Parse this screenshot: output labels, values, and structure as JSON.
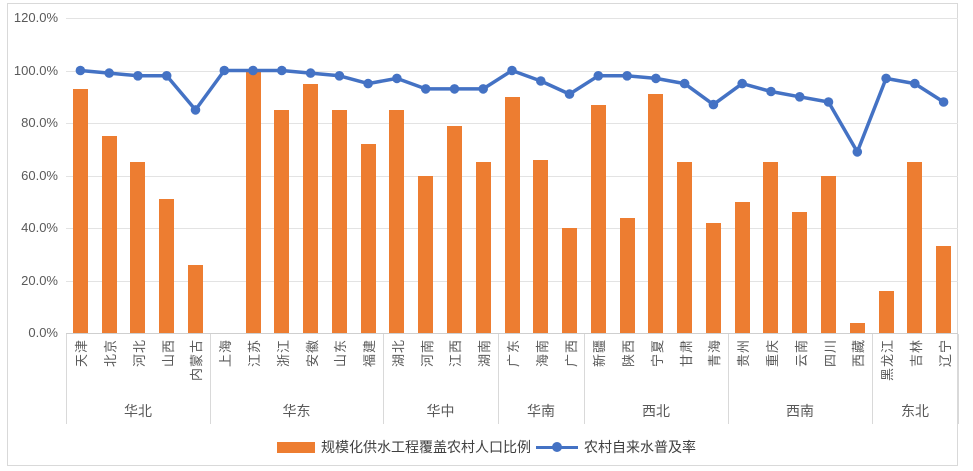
{
  "chart_data": {
    "type": "bar",
    "subtype": "combo-bar-line",
    "title": "",
    "y_axis": {
      "min": 0,
      "max": 120,
      "step": 20,
      "unit": "%",
      "tick_labels": [
        "120.0%",
        "100.0%",
        "80.0%",
        "60.0%",
        "40.0%",
        "20.0%",
        "0.0%"
      ],
      "grid": true
    },
    "categories": [
      "天津",
      "北京",
      "河北",
      "山西",
      "内蒙古",
      "上海",
      "江苏",
      "浙江",
      "安徽",
      "山东",
      "福建",
      "湖北",
      "河南",
      "江西",
      "湖南",
      "广东",
      "海南",
      "广西",
      "新疆",
      "陕西",
      "宁夏",
      "甘肃",
      "青海",
      "贵州",
      "重庆",
      "云南",
      "四川",
      "西藏",
      "黑龙江",
      "吉林",
      "辽宁"
    ],
    "regions": [
      {
        "name": "华北",
        "count": 5
      },
      {
        "name": "华东",
        "count": 6
      },
      {
        "name": "华中",
        "count": 4
      },
      {
        "name": "华南",
        "count": 3
      },
      {
        "name": "西北",
        "count": 5
      },
      {
        "name": "西南",
        "count": 5
      },
      {
        "name": "东北",
        "count": 3
      }
    ],
    "series": [
      {
        "name": "规模化供水工程覆盖农村人口比例",
        "type": "bar",
        "color": "#ED7D31",
        "values": [
          93,
          75,
          65,
          51,
          26,
          null,
          100,
          85,
          95,
          85,
          72,
          85,
          60,
          79,
          65,
          90,
          66,
          40,
          87,
          44,
          91,
          65,
          42,
          50,
          65,
          46,
          60,
          4,
          16,
          65,
          33
        ]
      },
      {
        "name": "农村自来水普及率",
        "type": "line",
        "color": "#4472C4",
        "marker_color": "#4472C4",
        "values": [
          100,
          99,
          98,
          98,
          85,
          100,
          100,
          100,
          99,
          98,
          95,
          97,
          93,
          93,
          93,
          100,
          96,
          91,
          98,
          98,
          97,
          95,
          87,
          95,
          92,
          90,
          88,
          69,
          97,
          95,
          88
        ]
      }
    ],
    "legend_position": "bottom",
    "colors": {
      "grid": "#e3e3e3",
      "frame": "#d9d9d9",
      "tick_text": "#595959"
    }
  }
}
